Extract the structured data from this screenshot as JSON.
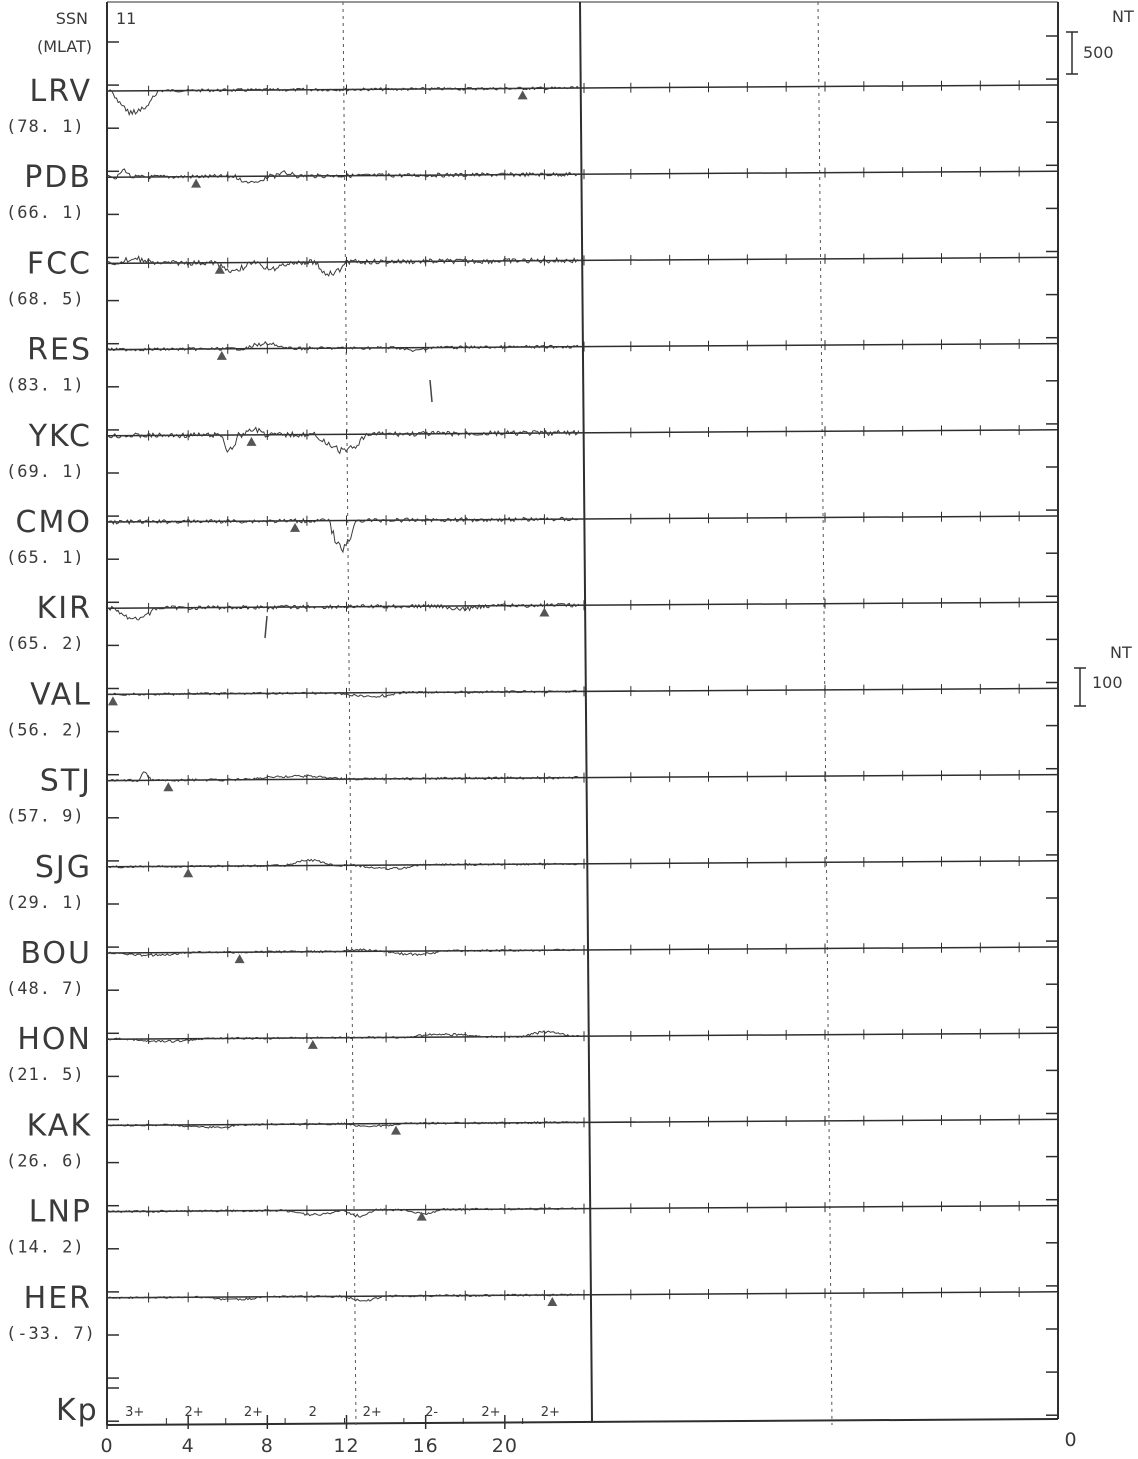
{
  "header": {
    "ssn_label": "SSN",
    "mlat_label": "(MLAT)",
    "day_label": "11"
  },
  "scale_bars": [
    {
      "unit": "NT",
      "value": "500"
    },
    {
      "unit": "NT",
      "value": "100"
    }
  ],
  "chart_data": {
    "type": "line",
    "title": "",
    "xlabel": "",
    "ylabel": "",
    "x_ticks": [
      "0",
      "4",
      "8",
      "12",
      "16",
      "20"
    ],
    "x_ticks_right": [
      "0"
    ],
    "xlim": [
      0,
      24
    ],
    "grid_dotted_at_hours": [
      12
    ],
    "stations": [
      {
        "code": "LRV",
        "mlat": "(78. 1)",
        "marker_hour": 21.0
      },
      {
        "code": "PDB",
        "mlat": "(66. 1)",
        "marker_hour": 4.5
      },
      {
        "code": "FCC",
        "mlat": "(68. 5)",
        "marker_hour": 5.7
      },
      {
        "code": "RES",
        "mlat": "(83. 1)",
        "marker_hour": 5.8
      },
      {
        "code": "YKC",
        "mlat": "(69. 1)",
        "marker_hour": 7.3
      },
      {
        "code": "CMO",
        "mlat": "(65. 1)",
        "marker_hour": 9.5
      },
      {
        "code": "KIR",
        "mlat": "(65. 2)",
        "marker_hour": 22.1
      },
      {
        "code": "VAL",
        "mlat": "(56. 2)",
        "marker_hour": 0.3
      },
      {
        "code": "STJ",
        "mlat": "(57. 9)",
        "marker_hour": 3.1
      },
      {
        "code": "SJG",
        "mlat": "(29. 1)",
        "marker_hour": 4.1
      },
      {
        "code": "BOU",
        "mlat": "(48. 7)",
        "marker_hour": 6.7
      },
      {
        "code": "HON",
        "mlat": "(21. 5)",
        "marker_hour": 10.4
      },
      {
        "code": "KAK",
        "mlat": "(26. 6)",
        "marker_hour": 14.6
      },
      {
        "code": "LNP",
        "mlat": "(14. 2)",
        "marker_hour": 15.9
      },
      {
        "code": "HER",
        "mlat": "(-33. 7)",
        "marker_hour": 22.5
      }
    ],
    "kp": {
      "label": "Kp",
      "values": [
        "3+",
        "2+",
        "2+",
        "2",
        "2+",
        "2-",
        "2+",
        "2+"
      ]
    }
  }
}
